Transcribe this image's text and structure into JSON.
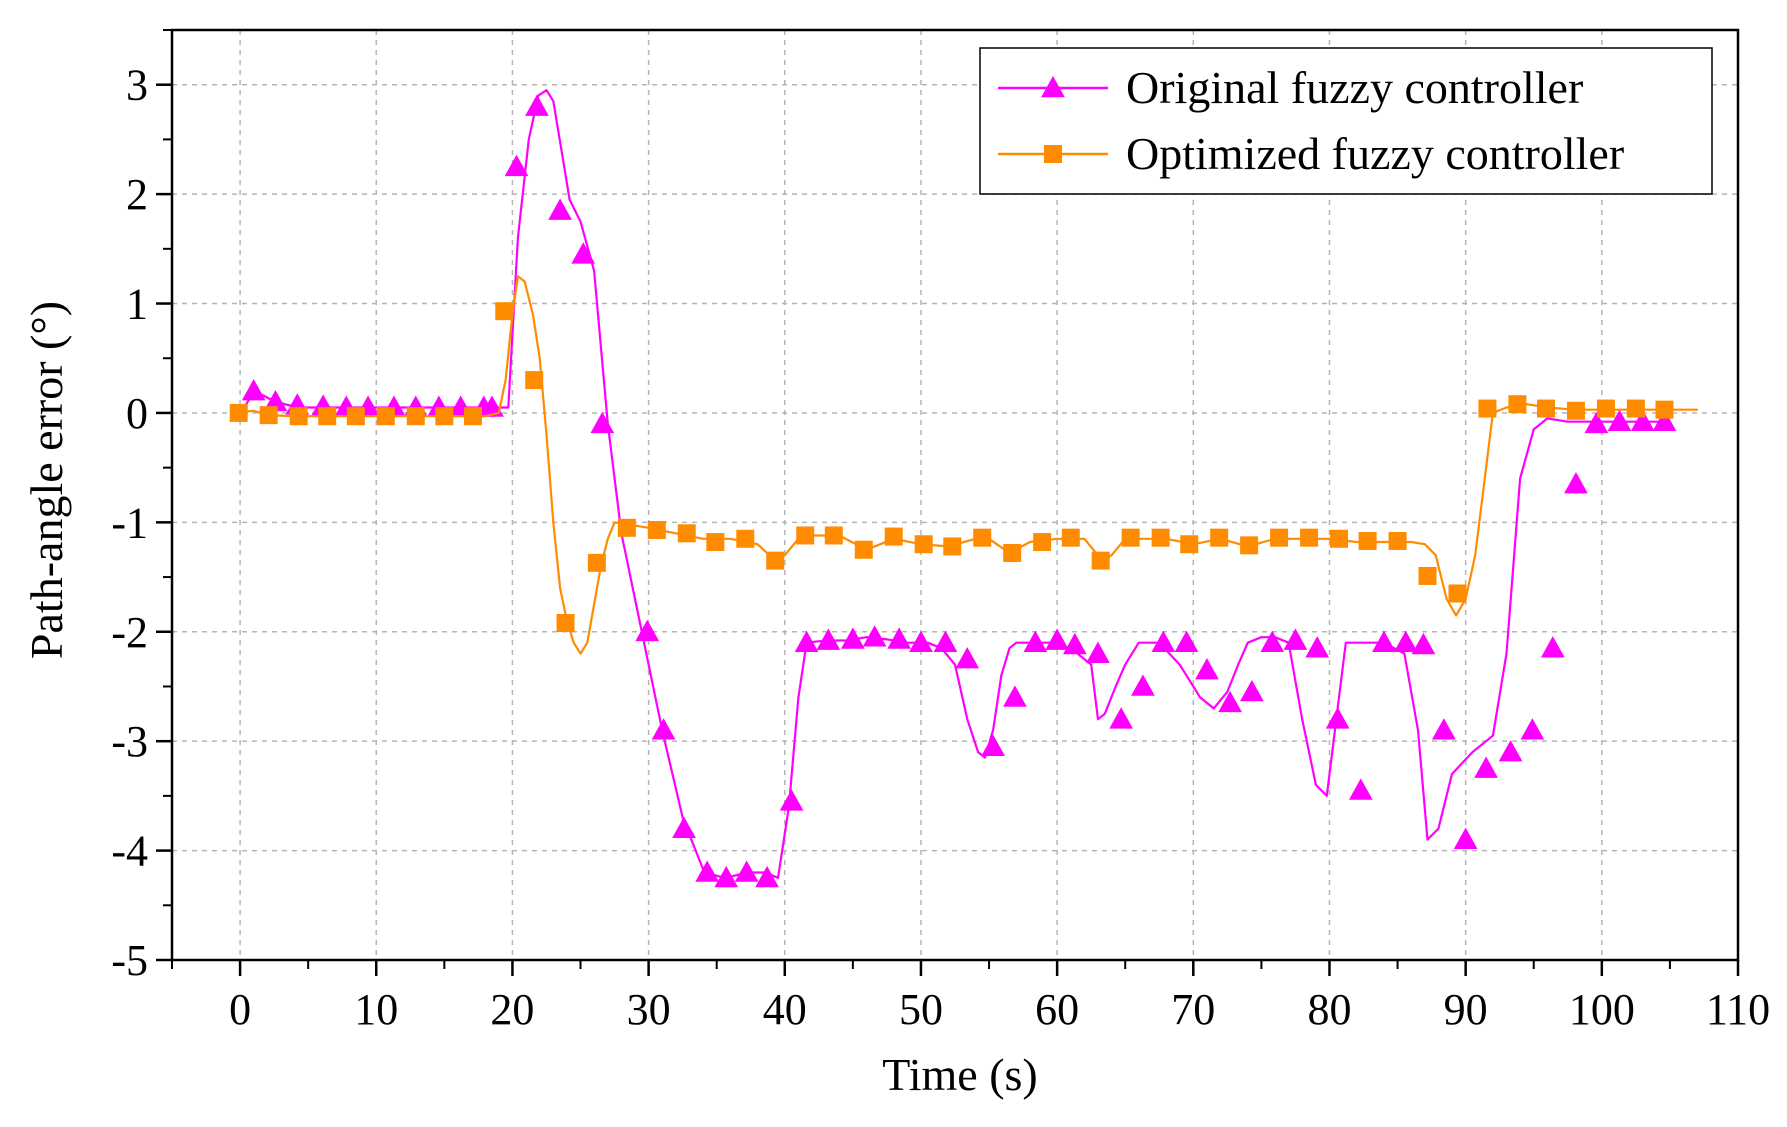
{
  "chart_data": {
    "type": "line",
    "xlabel": "Time (s)",
    "ylabel": "Path-angle error (°)",
    "xlim": [
      -5,
      110
    ],
    "ylim": [
      -5,
      3.5
    ],
    "xticks": [
      0,
      10,
      20,
      30,
      40,
      50,
      60,
      70,
      80,
      90,
      100,
      110
    ],
    "yticks": [
      -5,
      -4,
      -3,
      -2,
      -1,
      0,
      1,
      2,
      3
    ],
    "grid": true,
    "legend_position": "top-right",
    "series": [
      {
        "name": "Original fuzzy controller",
        "color": "#ff00ff",
        "marker": "triangle",
        "x": [
          0,
          1.1,
          2.6,
          4.3,
          5.5,
          7.1,
          8.7,
          10.6,
          11.2,
          12.6,
          14.8,
          15.6,
          17.0,
          18.5,
          19.7,
          20.4,
          21.2,
          21.9,
          22.5,
          23.0,
          23.6,
          24.2,
          25.0,
          26.0,
          27.0,
          28.0,
          29.5,
          31.0,
          32.5,
          34.1,
          35.6,
          37.3,
          38.6,
          39.5,
          40.3,
          41.0,
          41.6,
          43.0,
          44.5,
          46.0,
          47.5,
          49.0,
          50.5,
          51.5,
          52.5,
          53.4,
          54.2,
          54.7,
          55.3,
          55.9,
          56.5,
          57.0,
          58.0,
          59.5,
          61.0,
          62.5,
          63.0,
          63.5,
          64.3,
          65.0,
          66.0,
          67.5,
          69.0,
          70.5,
          71.5,
          72.5,
          73.3,
          74.0,
          75.0,
          76.0,
          77.0,
          78.0,
          79.0,
          79.8,
          80.5,
          81.2,
          82.5,
          84.0,
          85.5,
          86.5,
          87.2,
          88.0,
          89.0,
          90.5,
          92.0,
          93.0,
          94.0,
          95.0,
          96.0,
          97.5,
          99.0,
          101.0,
          103.0,
          105.0
        ],
        "y": [
          0,
          0.2,
          0.1,
          0.05,
          0.05,
          0.05,
          0.05,
          0.05,
          0.05,
          0.05,
          0.05,
          0.05,
          0.05,
          0.05,
          0.05,
          1.6,
          2.5,
          2.9,
          2.95,
          2.85,
          2.4,
          1.95,
          1.75,
          1.3,
          -0.1,
          -1.1,
          -2.0,
          -2.9,
          -3.7,
          -4.2,
          -4.25,
          -4.2,
          -4.2,
          -4.25,
          -3.6,
          -2.6,
          -2.1,
          -2.08,
          -2.08,
          -2.05,
          -2.07,
          -2.1,
          -2.1,
          -2.15,
          -2.3,
          -2.8,
          -3.1,
          -3.15,
          -2.9,
          -2.4,
          -2.15,
          -2.1,
          -2.1,
          -2.1,
          -2.15,
          -2.3,
          -2.8,
          -2.75,
          -2.5,
          -2.3,
          -2.1,
          -2.1,
          -2.3,
          -2.6,
          -2.7,
          -2.55,
          -2.3,
          -2.1,
          -2.05,
          -2.05,
          -2.1,
          -2.8,
          -3.4,
          -3.5,
          -2.8,
          -2.1,
          -2.1,
          -2.1,
          -2.2,
          -2.9,
          -3.9,
          -3.8,
          -3.3,
          -3.1,
          -2.95,
          -2.2,
          -0.6,
          -0.15,
          -0.05,
          -0.08,
          -0.08,
          -0.08,
          -0.08,
          -0.08
        ],
        "marker_x": [
          1.0,
          2.6,
          4.2,
          6.1,
          7.8,
          9.4,
          11.3,
          12.9,
          14.6,
          16.2,
          17.9,
          18.5,
          20.3,
          21.8,
          23.5,
          25.2,
          26.6,
          29.9,
          31.1,
          32.6,
          34.3,
          35.7,
          37.2,
          38.7,
          40.5,
          41.6,
          43.2,
          45.0,
          46.6,
          48.4,
          50.0,
          51.8,
          53.4,
          55.3,
          56.9,
          58.4,
          60.0,
          61.3,
          63.0,
          64.7,
          66.3,
          67.8,
          69.5,
          71.0,
          72.7,
          74.3,
          75.8,
          77.5,
          79.1,
          80.6,
          82.3,
          84.0,
          85.6,
          86.9,
          88.4,
          90.0,
          91.5,
          93.3,
          94.9,
          96.4,
          98.1,
          99.6,
          101.3,
          103.0,
          104.6
        ],
        "marker_y": [
          0.2,
          0.1,
          0.07,
          0.06,
          0.05,
          0.05,
          0.05,
          0.05,
          0.05,
          0.05,
          0.05,
          0.05,
          2.25,
          2.8,
          1.85,
          1.45,
          -0.1,
          -2.0,
          -2.9,
          -3.8,
          -4.2,
          -4.25,
          -4.2,
          -4.25,
          -3.55,
          -2.1,
          -2.08,
          -2.07,
          -2.05,
          -2.07,
          -2.1,
          -2.1,
          -2.25,
          -3.05,
          -2.6,
          -2.1,
          -2.08,
          -2.12,
          -2.2,
          -2.8,
          -2.5,
          -2.1,
          -2.1,
          -2.35,
          -2.65,
          -2.55,
          -2.1,
          -2.08,
          -2.15,
          -2.8,
          -3.45,
          -2.1,
          -2.1,
          -2.12,
          -2.9,
          -3.9,
          -3.25,
          -3.1,
          -2.9,
          -2.15,
          -0.65,
          -0.1,
          -0.08,
          -0.08,
          -0.08
        ]
      },
      {
        "name": "Optimized fuzzy controller",
        "color": "#ff8c00",
        "marker": "square",
        "x": [
          -0.5,
          1,
          2,
          4,
          6,
          8,
          10,
          12,
          14,
          16,
          18,
          19.0,
          19.5,
          20.0,
          20.4,
          20.9,
          21.5,
          22.0,
          22.5,
          23.0,
          23.5,
          24.0,
          24.5,
          25.0,
          25.5,
          26.0,
          26.5,
          27.0,
          27.5,
          28.5,
          30,
          32,
          34,
          36,
          38,
          39.3,
          40.0,
          41.0,
          42.0,
          44.0,
          46.0,
          48.0,
          50.0,
          52.0,
          54.0,
          55.0,
          56.5,
          58.0,
          60.0,
          62.0,
          63.3,
          64.0,
          65.0,
          66.0,
          68.0,
          70.0,
          72.0,
          74.0,
          76.0,
          78.0,
          80.0,
          82.0,
          84.0,
          86.0,
          87.0,
          87.8,
          88.6,
          89.3,
          90.0,
          90.7,
          91.3,
          92.0,
          93.0,
          94.5,
          96.0,
          98.0,
          100.0,
          102.0,
          104.0,
          105.5,
          107.0
        ],
        "y": [
          0,
          0.02,
          -0.02,
          -0.03,
          -0.03,
          -0.03,
          -0.03,
          -0.03,
          -0.03,
          -0.03,
          -0.03,
          0.0,
          0.3,
          0.9,
          1.25,
          1.2,
          0.9,
          0.5,
          -0.2,
          -1.0,
          -1.6,
          -1.9,
          -2.1,
          -2.2,
          -2.1,
          -1.75,
          -1.4,
          -1.15,
          -1.0,
          -1.02,
          -1.05,
          -1.1,
          -1.15,
          -1.15,
          -1.2,
          -1.35,
          -1.3,
          -1.15,
          -1.12,
          -1.12,
          -1.25,
          -1.15,
          -1.2,
          -1.22,
          -1.15,
          -1.15,
          -1.28,
          -1.18,
          -1.15,
          -1.15,
          -1.35,
          -1.3,
          -1.15,
          -1.15,
          -1.15,
          -1.2,
          -1.15,
          -1.22,
          -1.15,
          -1.15,
          -1.15,
          -1.18,
          -1.18,
          -1.18,
          -1.2,
          -1.3,
          -1.7,
          -1.85,
          -1.7,
          -1.3,
          -0.7,
          0.0,
          0.05,
          0.08,
          0.05,
          0.03,
          0.03,
          0.03,
          0.03,
          0.03,
          0.03
        ],
        "marker_x": [
          -0.1,
          2.1,
          4.3,
          6.4,
          8.5,
          10.7,
          12.9,
          15.0,
          17.1,
          19.4,
          21.6,
          23.9,
          26.2,
          28.4,
          30.6,
          32.8,
          34.9,
          37.1,
          39.3,
          41.5,
          43.6,
          45.8,
          48.0,
          50.2,
          52.3,
          54.5,
          56.7,
          58.9,
          61.0,
          63.2,
          65.4,
          67.6,
          69.7,
          71.9,
          74.1,
          76.3,
          78.5,
          80.7,
          82.8,
          85.0,
          87.2,
          89.4,
          91.6,
          93.8,
          95.9,
          98.1,
          100.3,
          102.5,
          104.6
        ],
        "marker_y": [
          0,
          -0.02,
          -0.03,
          -0.03,
          -0.03,
          -0.03,
          -0.03,
          -0.03,
          -0.03,
          0.93,
          0.3,
          -1.92,
          -1.37,
          -1.05,
          -1.07,
          -1.1,
          -1.18,
          -1.15,
          -1.35,
          -1.12,
          -1.12,
          -1.25,
          -1.13,
          -1.2,
          -1.22,
          -1.14,
          -1.28,
          -1.18,
          -1.14,
          -1.35,
          -1.14,
          -1.14,
          -1.2,
          -1.14,
          -1.21,
          -1.14,
          -1.14,
          -1.15,
          -1.17,
          -1.17,
          -1.49,
          -1.65,
          0.04,
          0.08,
          0.04,
          0.02,
          0.04,
          0.04,
          0.03
        ]
      }
    ]
  }
}
